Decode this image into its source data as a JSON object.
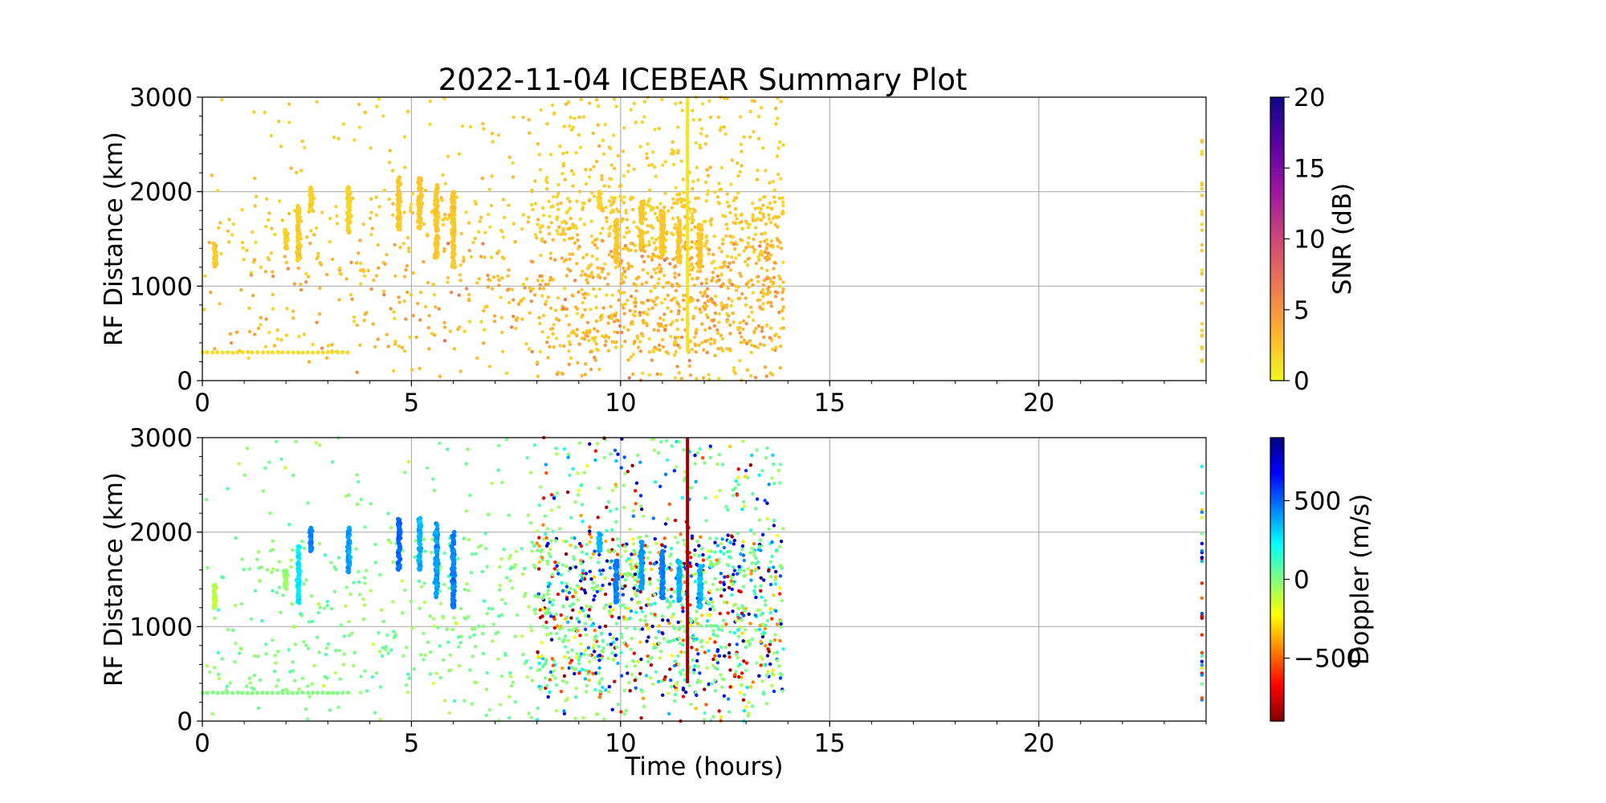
{
  "figure": {
    "title": "2022-11-04 ICEBEAR Summary Plot"
  },
  "chart_data": [
    {
      "type": "scatter",
      "title": "2022-11-04 ICEBEAR Summary Plot",
      "xlabel": "",
      "ylabel": "RF Distance (km)",
      "xlim": [
        0,
        24
      ],
      "ylim": [
        0,
        3000
      ],
      "x_ticks": [
        0,
        5,
        10,
        15,
        20
      ],
      "y_ticks": [
        0,
        1000,
        2000,
        3000
      ],
      "grid": true,
      "color_variable": "SNR (dB)",
      "colorbar": {
        "label": "SNR (dB)",
        "range": [
          0,
          20
        ],
        "ticks": [
          0,
          5,
          10,
          15,
          20
        ],
        "colormap": "plasma_r",
        "stops": [
          "#f0f921",
          "#fdb42f",
          "#ed7953",
          "#cc4778",
          "#9c179e",
          "#5c01a6",
          "#0d0887"
        ]
      },
      "activity_window_hours": [
        0,
        13.9
      ],
      "series": [
        {
          "shape": "cluster",
          "x": 0.3,
          "y": [
            1200,
            1450
          ],
          "c": 2
        },
        {
          "shape": "cluster",
          "x": 2.0,
          "y": [
            1400,
            1600
          ],
          "c": 1.5
        },
        {
          "shape": "cluster",
          "x": 2.3,
          "y": [
            1250,
            1850
          ],
          "c": 1.8
        },
        {
          "shape": "cluster",
          "x": 2.6,
          "y": [
            1800,
            2050
          ],
          "c": 1.5
        },
        {
          "shape": "cluster",
          "x": 3.5,
          "y": [
            1550,
            2050
          ],
          "c": 1.5
        },
        {
          "shape": "cluster",
          "x": 4.7,
          "y": [
            1600,
            2150
          ],
          "c": 2
        },
        {
          "shape": "cluster",
          "x": 5.2,
          "y": [
            1600,
            2150
          ],
          "c": 2
        },
        {
          "shape": "cluster",
          "x": 5.6,
          "y": [
            1300,
            2100
          ],
          "c": 2
        },
        {
          "shape": "cluster",
          "x": 6.0,
          "y": [
            1200,
            2000
          ],
          "c": 2
        },
        {
          "shape": "cluster",
          "x": 9.5,
          "y": [
            1800,
            2000
          ],
          "c": 1.5
        },
        {
          "shape": "cluster",
          "x": 9.9,
          "y": [
            1250,
            1700
          ],
          "c": 2
        },
        {
          "shape": "cluster",
          "x": 10.5,
          "y": [
            1400,
            1900
          ],
          "c": 2
        },
        {
          "shape": "cluster",
          "x": 11.0,
          "y": [
            1300,
            1800
          ],
          "c": 2
        },
        {
          "shape": "cluster",
          "x": 11.4,
          "y": [
            1250,
            1700
          ],
          "c": 2
        },
        {
          "shape": "cluster",
          "x": 11.9,
          "y": [
            1200,
            1650
          ],
          "c": 2
        },
        {
          "shape": "line",
          "x": 11.6,
          "y": [
            300,
            3000
          ],
          "c": 1
        },
        {
          "shape": "band",
          "x": [
            0,
            3.5
          ],
          "y": 300,
          "c": 1.5
        },
        {
          "shape": "edge",
          "x": 23.9,
          "y": [
            200,
            2700
          ],
          "c": 1
        }
      ]
    },
    {
      "type": "scatter",
      "xlabel": "Time (hours)",
      "ylabel": "RF Distance (km)",
      "xlim": [
        0,
        24
      ],
      "ylim": [
        0,
        3000
      ],
      "x_ticks": [
        0,
        5,
        10,
        15,
        20
      ],
      "y_ticks": [
        0,
        1000,
        2000,
        3000
      ],
      "grid": true,
      "color_variable": "Doppler (m/s)",
      "colorbar": {
        "label": "Doppler (m/s)",
        "range": [
          -900,
          900
        ],
        "ticks": [
          -500,
          0,
          500
        ],
        "colormap": "jet_r",
        "stops": [
          "#800000",
          "#ff0000",
          "#ff8000",
          "#ffff00",
          "#80ff80",
          "#00ffff",
          "#0080ff",
          "#0000ff",
          "#000080"
        ]
      },
      "activity_window_hours": [
        0,
        13.9
      ],
      "series": [
        {
          "shape": "cluster",
          "x": 0.3,
          "y": [
            1200,
            1450
          ],
          "c": -100
        },
        {
          "shape": "cluster",
          "x": 2.0,
          "y": [
            1400,
            1600
          ],
          "c": -50
        },
        {
          "shape": "cluster",
          "x": 2.3,
          "y": [
            1250,
            1850
          ],
          "c": 250
        },
        {
          "shape": "cluster",
          "x": 2.6,
          "y": [
            1800,
            2050
          ],
          "c": 450
        },
        {
          "shape": "cluster",
          "x": 3.5,
          "y": [
            1550,
            2050
          ],
          "c": 400
        },
        {
          "shape": "cluster",
          "x": 4.7,
          "y": [
            1600,
            2150
          ],
          "c": 500
        },
        {
          "shape": "cluster",
          "x": 5.2,
          "y": [
            1600,
            2150
          ],
          "c": 350
        },
        {
          "shape": "cluster",
          "x": 5.6,
          "y": [
            1300,
            2100
          ],
          "c": 400
        },
        {
          "shape": "cluster",
          "x": 6.0,
          "y": [
            1200,
            2000
          ],
          "c": 450
        },
        {
          "shape": "cluster",
          "x": 9.5,
          "y": [
            1800,
            2000
          ],
          "c": 350
        },
        {
          "shape": "cluster",
          "x": 9.9,
          "y": [
            1250,
            1700
          ],
          "c": 450
        },
        {
          "shape": "cluster",
          "x": 10.5,
          "y": [
            1400,
            1900
          ],
          "c": 400
        },
        {
          "shape": "cluster",
          "x": 11.0,
          "y": [
            1300,
            1800
          ],
          "c": 450
        },
        {
          "shape": "cluster",
          "x": 11.4,
          "y": [
            1250,
            1700
          ],
          "c": 350
        },
        {
          "shape": "cluster",
          "x": 11.9,
          "y": [
            1200,
            1650
          ],
          "c": 350
        },
        {
          "shape": "line",
          "x": 11.6,
          "y": [
            400,
            3000
          ],
          "c": -850
        },
        {
          "shape": "band",
          "x": [
            0,
            3.5
          ],
          "y": 300,
          "c": 0
        },
        {
          "shape": "edge",
          "x": 23.9,
          "y": [
            200,
            2700
          ],
          "c": 0
        }
      ]
    }
  ]
}
